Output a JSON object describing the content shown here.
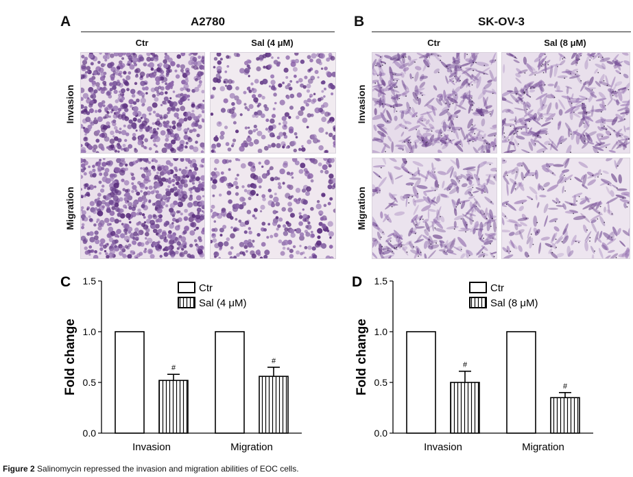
{
  "figure": {
    "caption_label": "Figure 2",
    "caption_text": " Salinomycin repressed the invasion and migration abilities of EOC cells."
  },
  "panelA": {
    "letter": "A",
    "cell_line": "A2780",
    "columns": [
      "Ctr",
      "Sal (4 μM)"
    ],
    "rows": [
      "Invasion",
      "Migration"
    ]
  },
  "panelB": {
    "letter": "B",
    "cell_line": "SK-OV-3",
    "columns": [
      "Ctr",
      "Sal (8 μM)"
    ],
    "rows": [
      "Invasion",
      "Migration"
    ]
  },
  "colors": {
    "stain_dark": "#5b2f7e",
    "stain_mid": "#8a62a8",
    "stain_bg": "#efe7ee",
    "bar_stroke": "#000000"
  },
  "chart_data": [
    {
      "panel": "C",
      "type": "bar",
      "categories": [
        "Invasion",
        "Migration"
      ],
      "series": [
        {
          "name": "Ctr",
          "values": [
            1.0,
            1.0
          ],
          "errors": [
            0,
            0
          ],
          "pattern": "none"
        },
        {
          "name": "Sal (4 μM)",
          "values": [
            0.52,
            0.56
          ],
          "errors": [
            0.06,
            0.09
          ],
          "pattern": "vertical-stripes"
        }
      ],
      "significance": [
        [
          "",
          "#"
        ],
        [
          "",
          "#"
        ]
      ],
      "ylabel": "Fold change",
      "ylim": [
        0,
        1.5
      ],
      "yticks": [
        "0.0",
        "0.5",
        "1.0",
        "1.5"
      ],
      "legend": "top-center"
    },
    {
      "panel": "D",
      "type": "bar",
      "categories": [
        "Invasion",
        "Migration"
      ],
      "series": [
        {
          "name": "Ctr",
          "values": [
            1.0,
            1.0
          ],
          "errors": [
            0,
            0
          ],
          "pattern": "none"
        },
        {
          "name": "Sal (8 μM)",
          "values": [
            0.5,
            0.35
          ],
          "errors": [
            0.11,
            0.05
          ],
          "pattern": "vertical-stripes"
        }
      ],
      "significance": [
        [
          "",
          "#"
        ],
        [
          "",
          "#"
        ]
      ],
      "ylabel": "Fold change",
      "ylim": [
        0,
        1.5
      ],
      "yticks": [
        "0.0",
        "0.5",
        "1.0",
        "1.5"
      ],
      "legend": "top-center"
    }
  ]
}
